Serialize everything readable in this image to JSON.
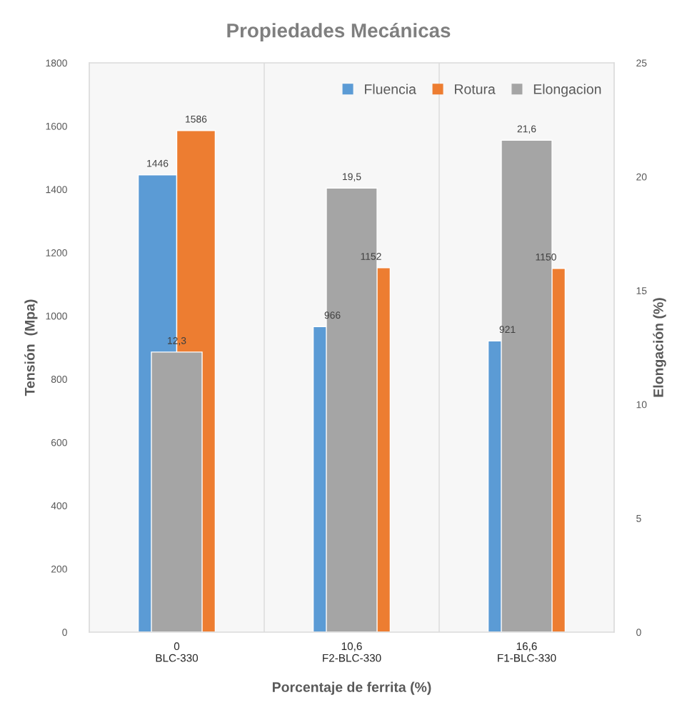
{
  "chart_data": {
    "type": "bar",
    "title": "Propiedades Mecánicas",
    "xlabel": "Porcentaje de ferrita (%)",
    "ylabel": "Tensión  (Mpa)",
    "y2label": "Elongación (%)",
    "categories": [
      "0\nBLC-330",
      "10,6\nF2-BLC-330",
      "16,6\nF1-BLC-330"
    ],
    "series": [
      {
        "name": "Fluencia",
        "color": "#5b9bd5",
        "values": [
          1446,
          966,
          921
        ],
        "value_labels": [
          "1446",
          "966",
          "921"
        ]
      },
      {
        "name": "Rotura",
        "color": "#ed7d31",
        "values": [
          1586,
          1152,
          1150
        ],
        "value_labels": [
          "1586",
          "1152",
          "1150"
        ]
      },
      {
        "name": "Elongacion",
        "color": "#a5a5a5",
        "values": [
          12.3,
          19.5,
          21.6
        ],
        "value_labels": [
          "12,3",
          "19,5",
          "21,6"
        ],
        "axis": "y2"
      }
    ],
    "ylim": [
      0,
      1800
    ],
    "yticks": [
      0,
      200,
      400,
      600,
      800,
      1000,
      1200,
      1400,
      1600,
      1800
    ],
    "y2lim": [
      0,
      25
    ],
    "y2ticks": [
      0,
      5,
      10,
      15,
      20,
      25
    ],
    "grid": "x",
    "legend": "top right"
  }
}
